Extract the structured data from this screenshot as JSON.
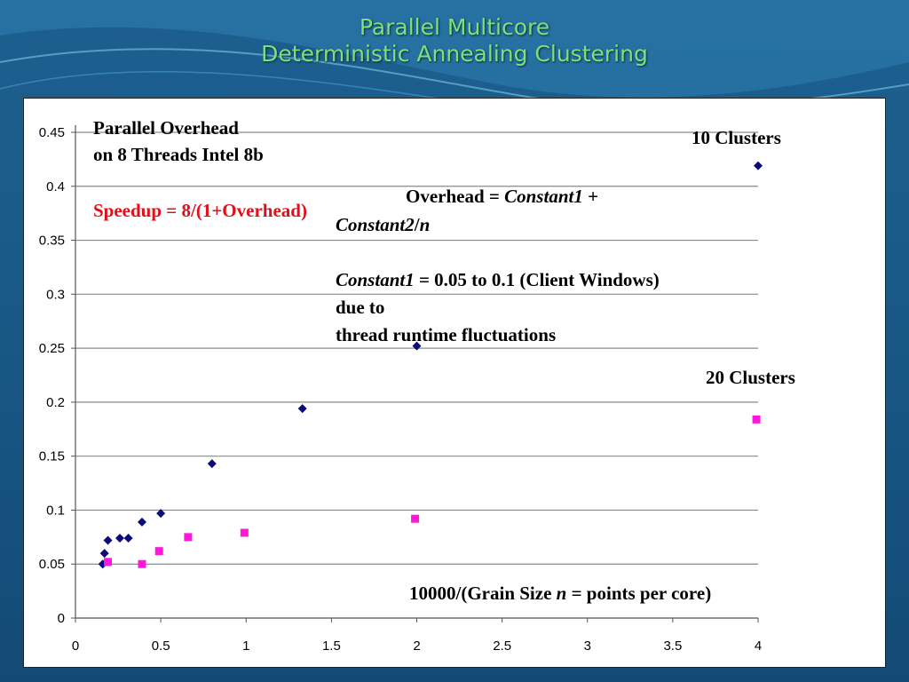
{
  "slide": {
    "title_line1": "Parallel Multicore",
    "title_line2": "Deterministic Annealing Clustering"
  },
  "annotations": {
    "heading_line1": "Parallel Overhead",
    "heading_line2": "on 8 Threads Intel 8b",
    "speedup": "Speedup = 8/(1+Overhead)",
    "label_10": "10 Clusters",
    "label_20": "20 Clusters",
    "formula_prefix": "Overhead = ",
    "formula_c1": "Constant1",
    "formula_plus": " +",
    "formula_c2": "Constant2",
    "formula_slash": "/",
    "formula_n": "n",
    "c1_label": "Constant1",
    "c1_text": " = 0.05 to 0.1 (Client Windows)",
    "due_to": "due to",
    "fluct": "thread runtime fluctuations",
    "x_prefix": "10000/(Grain Size ",
    "x_n": "n",
    "x_suffix": " = points per core)"
  },
  "colors": {
    "series_10": "#0a0a78",
    "series_20": "#ff18d8",
    "title": "#7fe07a",
    "speedup": "#e0101a"
  },
  "chart_data": {
    "type": "scatter",
    "xlim": [
      0,
      4
    ],
    "ylim": [
      0,
      0.45
    ],
    "x_ticks": [
      "0",
      "0.5",
      "1",
      "1.5",
      "2",
      "2.5",
      "3",
      "3.5",
      "4"
    ],
    "y_ticks": [
      "0",
      "0.05",
      "0.1",
      "0.15",
      "0.2",
      "0.25",
      "0.3",
      "0.35",
      "0.4",
      "0.45"
    ],
    "grid": "horizontal",
    "series": [
      {
        "name": "10 Clusters",
        "marker": "diamond",
        "points": [
          [
            0.16,
            0.05
          ],
          [
            0.17,
            0.06
          ],
          [
            0.19,
            0.072
          ],
          [
            0.26,
            0.074
          ],
          [
            0.31,
            0.074
          ],
          [
            0.39,
            0.089
          ],
          [
            0.5,
            0.097
          ],
          [
            0.8,
            0.143
          ],
          [
            1.33,
            0.194
          ],
          [
            2.0,
            0.252
          ],
          [
            4.0,
            0.419
          ]
        ]
      },
      {
        "name": "20 Clusters",
        "marker": "square",
        "points": [
          [
            0.19,
            0.052
          ],
          [
            0.39,
            0.05
          ],
          [
            0.49,
            0.062
          ],
          [
            0.66,
            0.075
          ],
          [
            0.99,
            0.079
          ],
          [
            1.99,
            0.092
          ],
          [
            3.99,
            0.184
          ]
        ]
      }
    ]
  }
}
